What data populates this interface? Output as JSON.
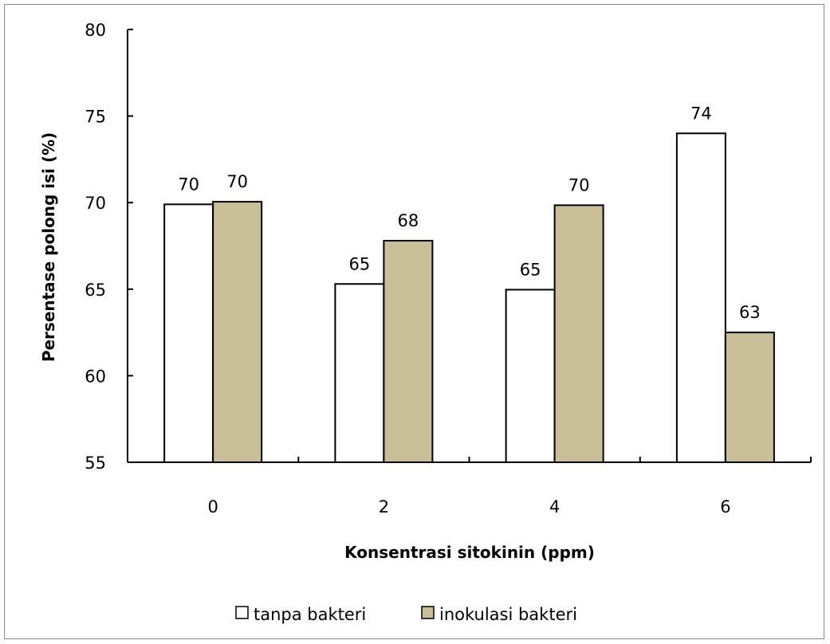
{
  "chart_data": {
    "type": "bar",
    "title": "",
    "xlabel": "Konsentrasi sitokinin (ppm)",
    "ylabel": "Persentase polong isi (%)",
    "categories": [
      "0",
      "2",
      "4",
      "6"
    ],
    "ylim": [
      55,
      80
    ],
    "yticks": [
      55,
      60,
      65,
      70,
      75,
      80
    ],
    "grid": false,
    "legend_position": "bottom",
    "series": [
      {
        "name": "tanpa bakteri",
        "color": "#ffffff",
        "values": [
          69.9,
          65.3,
          64.97,
          74.0
        ],
        "labels": [
          "70",
          "65",
          "65",
          "74"
        ]
      },
      {
        "name": "inokulasi bakteri",
        "color": "#c8bf99",
        "values": [
          70.05,
          67.8,
          69.85,
          62.5
        ],
        "labels": [
          "70",
          "68",
          "70",
          "63"
        ]
      }
    ]
  }
}
